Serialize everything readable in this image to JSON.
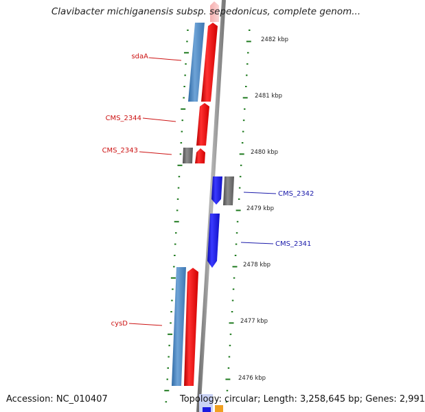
{
  "title": "Clavibacter michiganensis subsp. sepedonicus, complete genom...",
  "footer": {
    "accession": "Accession: NC_010407",
    "summary": "Topology: circular; Length: 3,258,645 bp; Genes: 2,991"
  },
  "ruler": {
    "unit": "kbp",
    "labels": [
      "2482 kbp",
      "2481 kbp",
      "2480 kbp",
      "2479 kbp",
      "2478 kbp",
      "2477 kbp",
      "2476 kbp"
    ]
  },
  "colors": {
    "forward_gene": "#e8141a",
    "reverse_gene": "#1515e6",
    "gene_bar": "#4f86c0",
    "pseudo_bar": "#707070",
    "backbone": "#8c8c8c",
    "ticks": "#1f7a1f",
    "label_forward": "#cc1111",
    "label_reverse": "#1a1aaa"
  },
  "genes": [
    {
      "label": "sdaA",
      "strand": "forward"
    },
    {
      "label": "CMS_2344",
      "strand": "forward"
    },
    {
      "label": "CMS_2343",
      "strand": "forward"
    },
    {
      "label": "CMS_2342",
      "strand": "reverse"
    },
    {
      "label": "CMS_2341",
      "strand": "reverse"
    },
    {
      "label": "cysD",
      "strand": "forward"
    }
  ]
}
